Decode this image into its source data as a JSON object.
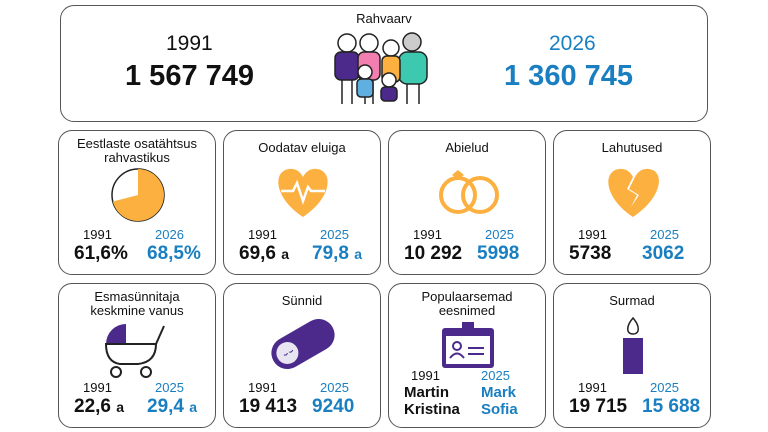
{
  "header": {
    "title": "Rahvaarv",
    "year1": "1991",
    "value1": "1 567 749",
    "year2": "2026",
    "value2": "1 360 745"
  },
  "cards": [
    {
      "title": [
        "Eestlaste osatähtsus",
        "rahvastikus"
      ],
      "year1": "1991",
      "value1": "61,6%",
      "year2": "2026",
      "value2": "68,5%"
    },
    {
      "title": [
        "Oodatav eluiga"
      ],
      "year1": "1991",
      "value1": "69,6",
      "unit1": "a",
      "year2": "2025",
      "value2": "79,8",
      "unit2": "a"
    },
    {
      "title": [
        "Abielud"
      ],
      "year1": "1991",
      "value1": "10 292",
      "year2": "2025",
      "value2": "5998"
    },
    {
      "title": [
        "Lahutused"
      ],
      "year1": "1991",
      "value1": "5738",
      "year2": "2025",
      "value2": "3062"
    },
    {
      "title": [
        "Esmasünnitaja",
        "keskmine vanus"
      ],
      "year1": "1991",
      "value1": "22,6",
      "unit1": "a",
      "year2": "2025",
      "value2": "29,4",
      "unit2": "a"
    },
    {
      "title": [
        "Sünnid"
      ],
      "year1": "1991",
      "value1": "19 413",
      "year2": "2025",
      "value2": "9240"
    },
    {
      "title": [
        "Populaarsemad",
        "eesnimed"
      ],
      "year1": "1991",
      "value1": [
        "Martin",
        "Kristina"
      ],
      "year2": "2025",
      "value2": [
        "Mark",
        "Sofia"
      ]
    },
    {
      "title": [
        "Surmad"
      ],
      "year1": "1991",
      "value1": "19 715",
      "year2": "2025",
      "value2": "15 688"
    }
  ]
}
